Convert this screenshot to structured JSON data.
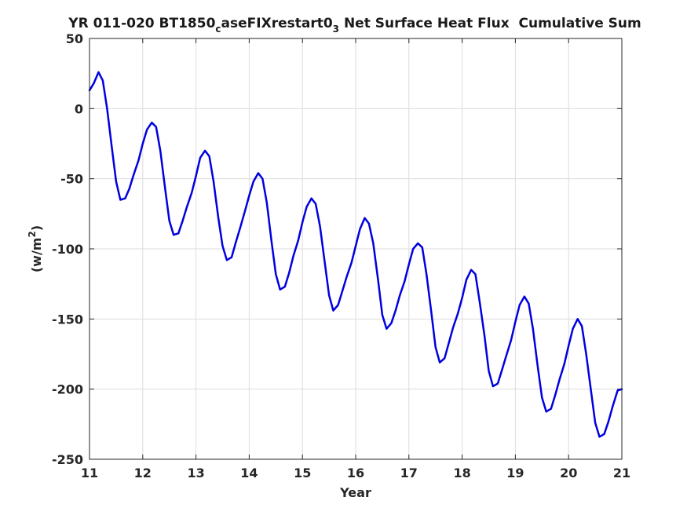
{
  "chart_data": {
    "type": "line",
    "title": {
      "prefix": "YR 011-020 BT1850",
      "sub1": "c",
      "mid": "aseFIXrestart0",
      "sub2": "3",
      "suffix": " Net Surface Heat Flux  Cumulative Sum"
    },
    "xlabel": "Year",
    "ylabel": {
      "text": "(w/m",
      "sup": "2",
      "close": ")"
    },
    "xlim": [
      11,
      21
    ],
    "ylim": [
      -250,
      50
    ],
    "xticks": [
      11,
      12,
      13,
      14,
      15,
      16,
      17,
      18,
      19,
      20,
      21
    ],
    "yticks": [
      50,
      0,
      -50,
      -100,
      -150,
      -200,
      -250
    ],
    "grid": true,
    "line_color": "#0000e0",
    "series": [
      {
        "x": [
          11.0,
          11.08,
          11.17,
          11.25,
          11.33,
          11.42,
          11.5,
          11.58,
          11.67,
          11.75,
          11.83,
          11.92,
          12.0,
          12.08,
          12.17,
          12.25,
          12.33,
          12.42,
          12.5,
          12.58,
          12.67,
          12.75,
          12.83,
          12.92,
          13.0,
          13.08,
          13.17,
          13.25,
          13.33,
          13.42,
          13.5,
          13.58,
          13.67,
          13.75,
          13.83,
          13.92,
          14.0,
          14.08,
          14.17,
          14.25,
          14.33,
          14.42,
          14.5,
          14.58,
          14.67,
          14.75,
          14.83,
          14.92,
          15.0,
          15.08,
          15.17,
          15.25,
          15.33,
          15.42,
          15.5,
          15.58,
          15.67,
          15.75,
          15.83,
          15.92,
          16.0,
          16.08,
          16.17,
          16.25,
          16.33,
          16.42,
          16.5,
          16.58,
          16.67,
          16.75,
          16.83,
          16.92,
          17.0,
          17.08,
          17.17,
          17.25,
          17.33,
          17.42,
          17.5,
          17.58,
          17.67,
          17.75,
          17.83,
          17.92,
          18.0,
          18.08,
          18.17,
          18.25,
          18.33,
          18.42,
          18.5,
          18.58,
          18.67,
          18.75,
          18.83,
          18.92,
          19.0,
          19.08,
          19.17,
          19.25,
          19.33,
          19.42,
          19.5,
          19.58,
          19.67,
          19.75,
          19.83,
          19.92,
          20.0,
          20.08,
          20.17,
          20.25,
          20.33,
          20.42,
          20.5,
          20.58,
          20.67,
          20.75,
          20.83,
          20.92,
          21.0
        ],
        "y": [
          13,
          18,
          26,
          20,
          0,
          -28,
          -52,
          -65,
          -64,
          -57,
          -47,
          -37,
          -25,
          -15,
          -10,
          -13,
          -30,
          -57,
          -80,
          -90,
          -89,
          -80,
          -70,
          -60,
          -48,
          -35,
          -30,
          -34,
          -52,
          -78,
          -98,
          -108,
          -106,
          -95,
          -85,
          -73,
          -62,
          -52,
          -46,
          -50,
          -67,
          -95,
          -118,
          -129,
          -127,
          -117,
          -105,
          -94,
          -81,
          -70,
          -64,
          -68,
          -84,
          -110,
          -133,
          -144,
          -140,
          -130,
          -120,
          -110,
          -98,
          -86,
          -78,
          -82,
          -96,
          -122,
          -147,
          -157,
          -153,
          -144,
          -133,
          -123,
          -111,
          -100,
          -96,
          -99,
          -118,
          -145,
          -170,
          -181,
          -178,
          -167,
          -156,
          -146,
          -135,
          -122,
          -115,
          -118,
          -138,
          -162,
          -187,
          -198,
          -196,
          -186,
          -176,
          -165,
          -152,
          -140,
          -134,
          -139,
          -157,
          -184,
          -206,
          -216,
          -214,
          -204,
          -193,
          -182,
          -169,
          -157,
          -150,
          -155,
          -175,
          -201,
          -224,
          -234,
          -232,
          -223,
          -212,
          -201,
          -200
        ]
      }
    ]
  }
}
